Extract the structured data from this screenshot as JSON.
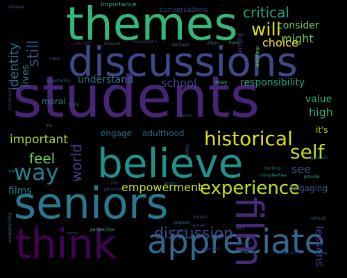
{
  "words": [
    {
      "t": "students",
      "c": "#482475"
    },
    {
      "t": "seniors",
      "c": "#2a788e"
    },
    {
      "t": "themes",
      "c": "#35b779"
    },
    {
      "t": "discussions",
      "c": "#3e4989"
    },
    {
      "t": "believe",
      "c": "#21918c"
    },
    {
      "t": "think",
      "c": "#440154"
    },
    {
      "t": "appreciate",
      "c": "#31688e"
    },
    {
      "t": "film",
      "c": "#482878"
    },
    {
      "t": "historical",
      "c": "#dde318"
    },
    {
      "t": "experience",
      "c": "#c8e020"
    },
    {
      "t": "way",
      "c": "#26828e"
    },
    {
      "t": "self",
      "c": "#bddf26"
    },
    {
      "t": "discussion",
      "c": "#3e4a89"
    },
    {
      "t": "will",
      "c": "#dde318"
    },
    {
      "t": "critical",
      "c": "#21a685"
    },
    {
      "t": "still",
      "c": "#3b518b"
    },
    {
      "t": "identity",
      "c": "#2c728e"
    },
    {
      "t": "empowerment",
      "c": "#c2df23"
    },
    {
      "t": "feel",
      "c": "#6ece58"
    },
    {
      "t": "world",
      "c": "#433e85"
    },
    {
      "t": "important",
      "c": "#a8db34"
    },
    {
      "t": "consider",
      "c": "#6ccd5a"
    },
    {
      "t": "might",
      "c": "#5ec962"
    },
    {
      "t": "choice",
      "c": "#fde725"
    },
    {
      "t": "school",
      "c": "#3f4788"
    },
    {
      "t": "responsibility",
      "c": "#22a785"
    },
    {
      "t": "understand",
      "c": "#2d708e"
    },
    {
      "t": "value",
      "c": "#31b57b"
    },
    {
      "t": "high",
      "c": "#2db27d"
    },
    {
      "t": "engage",
      "c": "#2e6f8e"
    },
    {
      "t": "adulthood",
      "c": "#32658e"
    },
    {
      "t": "see",
      "c": "#3a538b"
    },
    {
      "t": "engaging",
      "c": "#38588c"
    },
    {
      "t": "films",
      "c": "#27808e"
    },
    {
      "t": "lessons",
      "c": "#453581"
    },
    {
      "t": "moral",
      "c": "#24868e"
    },
    {
      "t": "lives",
      "c": "#2a768e"
    },
    {
      "t": "it's",
      "c": "#c0df25"
    },
    {
      "t": "importance",
      "c": "#35b779"
    },
    {
      "t": "conversations",
      "c": "#3e4989"
    },
    {
      "t": "future",
      "c": "#443a83"
    },
    {
      "t": "dialogue",
      "c": "#5cc863"
    },
    {
      "t": "may",
      "c": "#35b779"
    },
    {
      "t": "decision",
      "c": "#472d7b"
    },
    {
      "t": "forward",
      "c": "#2e6e8e"
    },
    {
      "t": "meaningful",
      "c": "#433e85"
    },
    {
      "t": "perhaps",
      "c": "#38598c"
    },
    {
      "t": "offers",
      "c": "#2a768e"
    },
    {
      "t": "thank",
      "c": "#31b57b"
    },
    {
      "t": "opportunity",
      "c": "#38588c"
    },
    {
      "t": "depth",
      "c": "#38588c"
    },
    {
      "t": "joy",
      "c": "#433e85"
    },
    {
      "t": "personal",
      "c": "#3b528b"
    },
    {
      "t": "respect",
      "c": "#2c728e"
    },
    {
      "t": "thinking",
      "c": "#2c728e"
    },
    {
      "t": "complexities",
      "c": "#20a386"
    },
    {
      "t": "provide",
      "c": "#29af7f"
    },
    {
      "t": "perspective",
      "c": "#31b57b"
    },
    {
      "t": "prepare",
      "c": "#2a788e"
    },
    {
      "t": "impact",
      "c": "#3b528b"
    },
    {
      "t": "deeper",
      "c": "#453781"
    },
    {
      "t": "let's",
      "c": "#2d708e"
    },
    {
      "t": "ethical",
      "c": "#31688e"
    },
    {
      "t": "essential",
      "c": "#46307e"
    },
    {
      "t": "encourages",
      "c": "#21918c"
    },
    {
      "t": "societal",
      "c": "#3e4989"
    },
    {
      "t": "conversation",
      "c": "#46307e"
    },
    {
      "t": "create",
      "c": "#2b748e"
    },
    {
      "t": "engagement",
      "c": "#3f4788"
    },
    {
      "t": "movie",
      "c": "#3b528b"
    },
    {
      "t": "truly",
      "c": "#2a788e"
    },
    {
      "t": "life",
      "c": "#31688e"
    },
    {
      "t": "want",
      "c": "#2c728e"
    },
    {
      "t": "history",
      "c": "#3e4989"
    },
    {
      "t": "understanding",
      "c": "#2c728e"
    },
    {
      "t": "challenges",
      "c": "#453781"
    },
    {
      "t": "choices",
      "c": "#31688e"
    },
    {
      "t": "make",
      "c": "#3b528b"
    },
    {
      "t": "approach",
      "c": "#2a788e"
    }
  ]
}
